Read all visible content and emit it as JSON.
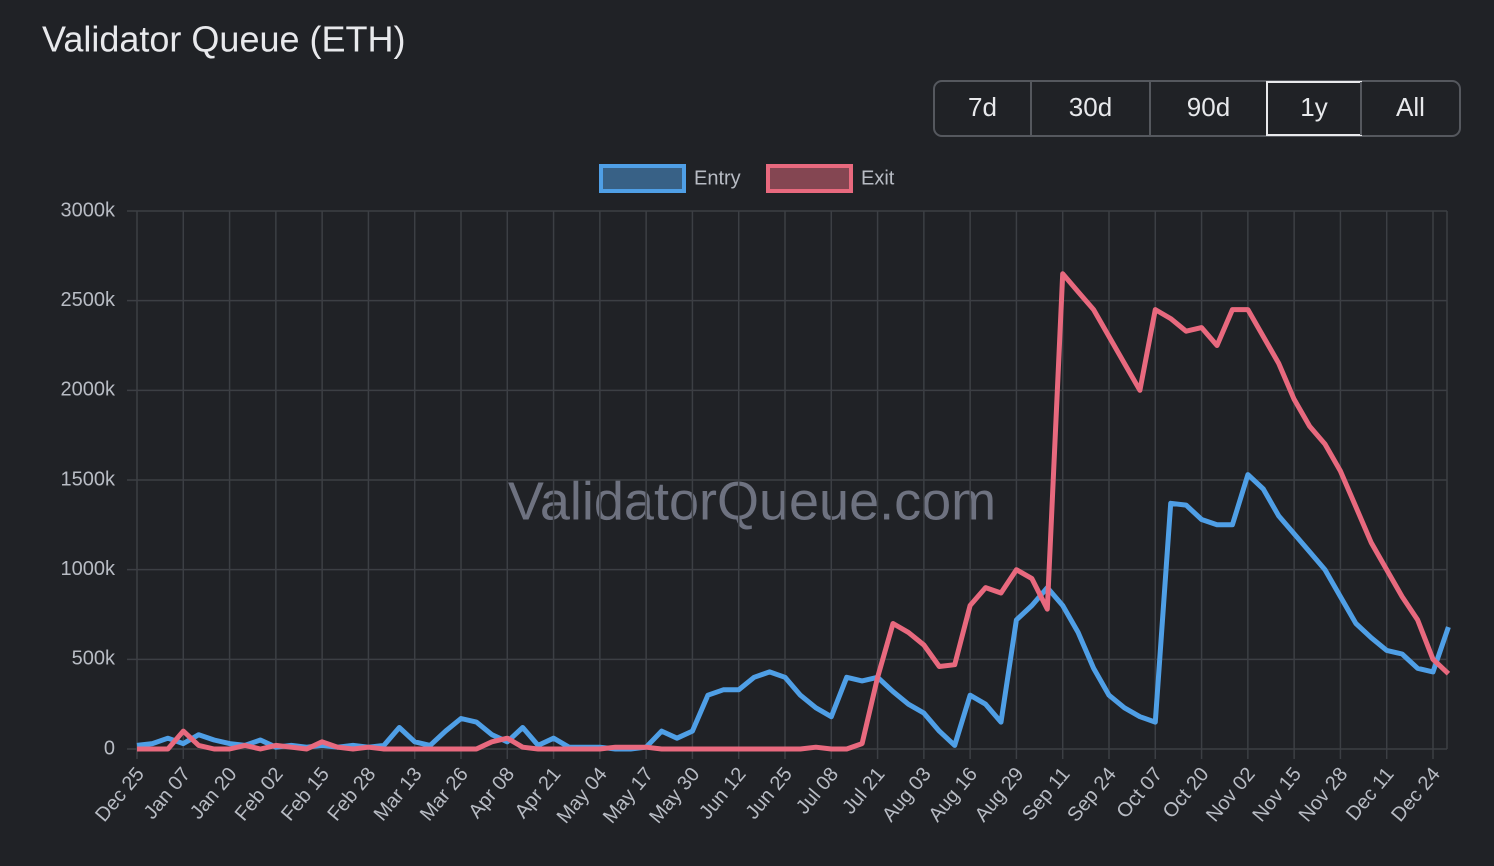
{
  "page_title": "Validator Queue (ETH)",
  "controls": {
    "buttons": [
      {
        "label": "7d",
        "active": false
      },
      {
        "label": "30d",
        "active": false
      },
      {
        "label": "90d",
        "active": false
      },
      {
        "label": "1y",
        "active": true
      },
      {
        "label": "All",
        "active": false
      }
    ]
  },
  "chart_data": {
    "type": "line",
    "watermark": "ValidatorQueue.com",
    "legend": "top",
    "grid": true,
    "categories": [
      "Dec 25",
      null,
      null,
      "Jan 07",
      null,
      null,
      "Jan 20",
      null,
      null,
      "Feb 02",
      null,
      null,
      "Feb 15",
      null,
      null,
      "Feb 28",
      null,
      null,
      "Mar 13",
      null,
      null,
      "Mar 26",
      null,
      null,
      "Apr 08",
      null,
      null,
      "Apr 21",
      null,
      null,
      "May 04",
      null,
      null,
      "May 17",
      null,
      null,
      "May 30",
      null,
      null,
      "Jun 12",
      null,
      null,
      "Jun 25",
      null,
      null,
      "Jul 08",
      null,
      null,
      "Jul 21",
      null,
      null,
      "Aug 03",
      null,
      null,
      "Aug 16",
      null,
      null,
      "Aug 29",
      null,
      null,
      "Sep 11",
      null,
      null,
      "Sep 24",
      null,
      null,
      "Oct 07",
      null,
      null,
      "Oct 20",
      null,
      null,
      "Nov 02",
      null,
      null,
      "Nov 15",
      null,
      null,
      "Nov 28",
      null,
      null,
      "Dec 11",
      null,
      null,
      "Dec 24",
      null
    ],
    "series": [
      {
        "name": "Entry",
        "color": "#4f9fe6",
        "values": [
          20000,
          30000,
          60000,
          30000,
          80000,
          50000,
          30000,
          20000,
          50000,
          10000,
          20000,
          10000,
          20000,
          10000,
          20000,
          10000,
          20000,
          120000,
          40000,
          20000,
          100000,
          170000,
          150000,
          80000,
          40000,
          120000,
          20000,
          60000,
          10000,
          10000,
          10000,
          0,
          0,
          10000,
          100000,
          60000,
          100000,
          300000,
          330000,
          330000,
          400000,
          430000,
          400000,
          300000,
          230000,
          180000,
          400000,
          380000,
          400000,
          320000,
          250000,
          200000,
          100000,
          20000,
          300000,
          250000,
          150000,
          720000,
          800000,
          900000,
          800000,
          650000,
          450000,
          300000,
          230000,
          180000,
          150000,
          1370000,
          1360000,
          1280000,
          1250000,
          1250000,
          1530000,
          1450000,
          1300000,
          1200000,
          1100000,
          1000000,
          850000,
          700000,
          620000,
          550000,
          530000,
          450000,
          430000,
          680000
        ]
      },
      {
        "name": "Exit",
        "color": "#e8697e",
        "values": [
          0,
          0,
          0,
          100000,
          20000,
          0,
          0,
          20000,
          0,
          20000,
          10000,
          0,
          40000,
          10000,
          0,
          10000,
          0,
          0,
          0,
          0,
          0,
          0,
          0,
          40000,
          60000,
          10000,
          0,
          0,
          0,
          0,
          0,
          10000,
          10000,
          10000,
          0,
          0,
          0,
          0,
          0,
          0,
          0,
          0,
          0,
          0,
          10000,
          0,
          0,
          30000,
          400000,
          700000,
          650000,
          580000,
          460000,
          470000,
          800000,
          900000,
          870000,
          1000000,
          950000,
          780000,
          2650000,
          2550000,
          2450000,
          2300000,
          2150000,
          2000000,
          2450000,
          2400000,
          2330000,
          2350000,
          2250000,
          2450000,
          2450000,
          2300000,
          2150000,
          1950000,
          1800000,
          1700000,
          1550000,
          1350000,
          1150000,
          1000000,
          850000,
          720000,
          500000,
          420000
        ]
      }
    ],
    "ylim": [
      0,
      3000000
    ],
    "yticks": [
      {
        "value": 0,
        "label": "0"
      },
      {
        "value": 500000,
        "label": "500k"
      },
      {
        "value": 1000000,
        "label": "1000k"
      },
      {
        "value": 1500000,
        "label": "1500k"
      },
      {
        "value": 2000000,
        "label": "2000k"
      },
      {
        "value": 2500000,
        "label": "2500k"
      },
      {
        "value": 3000000,
        "label": "3000k"
      }
    ]
  }
}
